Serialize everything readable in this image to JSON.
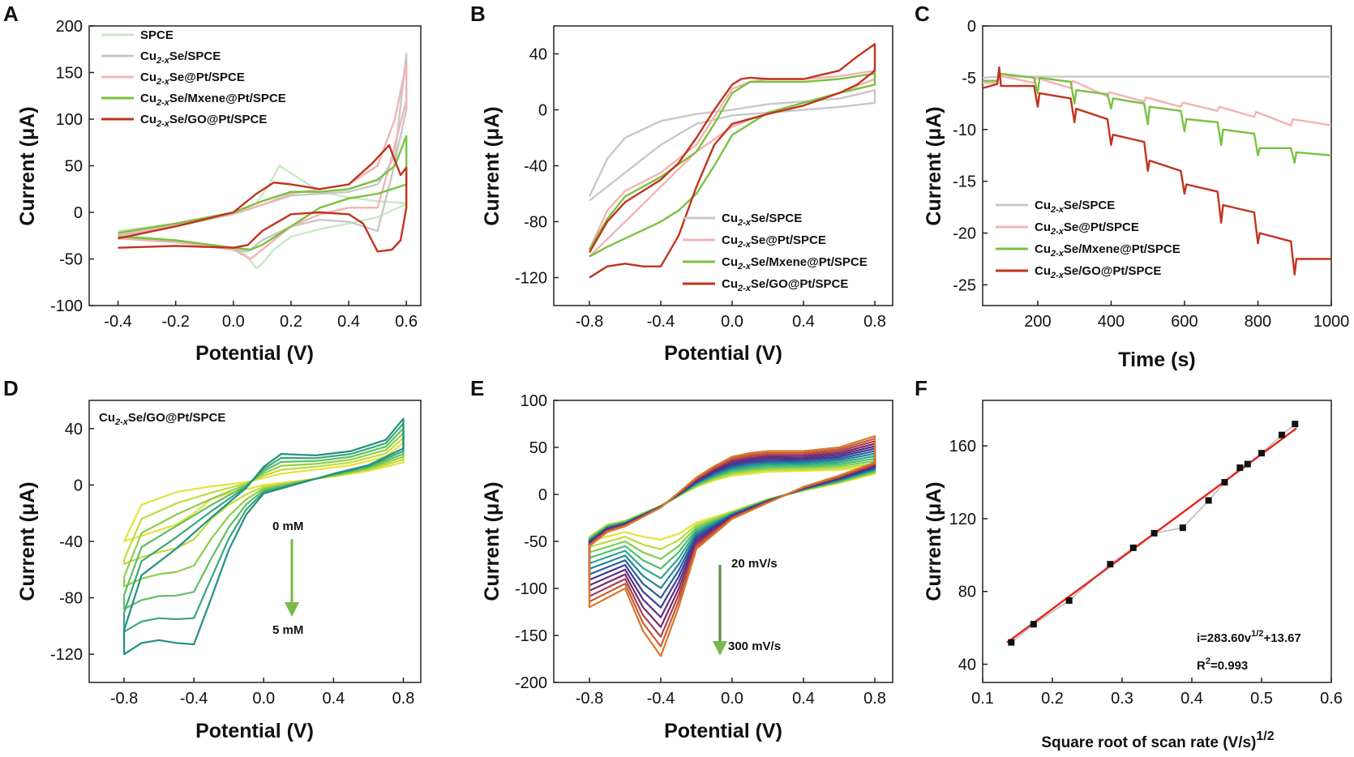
{
  "panels": [
    {
      "id": "A",
      "type": "line",
      "panel_label": "A",
      "xlabel": "Potential (V)",
      "ylabel": "Current (μA)",
      "xlim": [
        -0.5,
        0.65
      ],
      "ylim": [
        -100,
        200
      ],
      "xticks": [
        -0.4,
        -0.2,
        0.0,
        0.2,
        0.4,
        0.6
      ],
      "xtick_labels": [
        "-0.4",
        "-0.2",
        "0.0",
        "0.2",
        "0.4",
        "0.6"
      ],
      "yticks": [
        -100,
        -50,
        0,
        50,
        100,
        150,
        200
      ],
      "ytick_labels": [
        "-100",
        "-50",
        "0",
        "50",
        "100",
        "150",
        "200"
      ],
      "legend": [
        "SPCE",
        "Cu2-xSe/SPCE",
        "Cu2-xSe@Pt/SPCE",
        "Cu2-xSe/Mxene@Pt/SPCE",
        "Cu2-xSe/GO@Pt/SPCE"
      ],
      "legend_position": "top-left",
      "series": [
        {
          "name": "SPCE",
          "color": "#c9e8c4",
          "x": [
            -0.4,
            -0.2,
            0.0,
            0.08,
            0.12,
            0.16,
            0.22,
            0.3,
            0.4,
            0.5,
            0.6,
            0.6,
            0.5,
            0.4,
            0.3,
            0.2,
            0.14,
            0.1,
            0.08,
            0.04,
            0.0,
            -0.2,
            -0.4
          ],
          "y": [
            -20,
            -12,
            -2,
            10,
            28,
            50,
            38,
            22,
            16,
            12,
            10,
            9,
            -5,
            -12,
            -18,
            -26,
            -40,
            -55,
            -60,
            -45,
            -38,
            -30,
            -24
          ]
        },
        {
          "name": "Cu2-xSe/SPCE",
          "color": "#c8c8c8",
          "x": [
            -0.4,
            -0.2,
            0.0,
            0.1,
            0.2,
            0.3,
            0.4,
            0.5,
            0.56,
            0.6,
            0.6,
            0.55,
            0.5,
            0.4,
            0.3,
            0.2,
            0.1,
            0.05,
            0.0,
            -0.2,
            -0.4
          ],
          "y": [
            -25,
            -15,
            -2,
            8,
            18,
            20,
            22,
            30,
            60,
            170,
            110,
            40,
            -20,
            -10,
            -8,
            -15,
            -30,
            -42,
            -40,
            -32,
            -28
          ]
        },
        {
          "name": "Cu2-xSe@Pt/SPCE",
          "color": "#f4b3b3",
          "x": [
            -0.4,
            -0.2,
            0.0,
            0.1,
            0.2,
            0.3,
            0.4,
            0.5,
            0.56,
            0.6,
            0.6,
            0.55,
            0.5,
            0.4,
            0.3,
            0.2,
            0.12,
            0.06,
            0.0,
            -0.2,
            -0.4
          ],
          "y": [
            -24,
            -14,
            -1,
            8,
            20,
            25,
            30,
            50,
            100,
            160,
            120,
            60,
            5,
            5,
            -2,
            -15,
            -35,
            -50,
            -40,
            -32,
            -28
          ]
        },
        {
          "name": "Cu2-xSe/Mxene@Pt/SPCE",
          "color": "#7ac141",
          "x": [
            -0.4,
            -0.2,
            0.0,
            0.1,
            0.2,
            0.3,
            0.4,
            0.5,
            0.56,
            0.6,
            0.6,
            0.55,
            0.5,
            0.4,
            0.3,
            0.2,
            0.1,
            0.06,
            0.0,
            -0.2,
            -0.4
          ],
          "y": [
            -22,
            -12,
            0,
            12,
            22,
            22,
            25,
            35,
            50,
            82,
            30,
            25,
            20,
            15,
            5,
            -15,
            -35,
            -40,
            -38,
            -30,
            -26
          ]
        },
        {
          "name": "Cu2-xSe/GO@Pt/SPCE",
          "color": "#c0341d",
          "x": [
            -0.4,
            -0.2,
            0.0,
            0.08,
            0.14,
            0.2,
            0.3,
            0.4,
            0.48,
            0.54,
            0.58,
            0.6,
            0.6,
            0.58,
            0.55,
            0.5,
            0.45,
            0.4,
            0.3,
            0.2,
            0.1,
            0.05,
            0.0,
            -0.2,
            -0.4
          ],
          "y": [
            -28,
            -15,
            0,
            20,
            32,
            30,
            25,
            30,
            52,
            72,
            40,
            48,
            5,
            -30,
            -40,
            -42,
            -12,
            -2,
            0,
            -2,
            -20,
            -35,
            -38,
            -36,
            -38
          ]
        }
      ]
    },
    {
      "id": "B",
      "type": "line",
      "panel_label": "B",
      "xlabel": "Potential (V)",
      "ylabel": "Current (μA)",
      "xlim": [
        -1.0,
        0.9
      ],
      "ylim": [
        -140,
        60
      ],
      "xticks": [
        -0.8,
        -0.4,
        0.0,
        0.4,
        0.8
      ],
      "xtick_labels": [
        "-0.8",
        "-0.4",
        "0.0",
        "0.4",
        "0.8"
      ],
      "yticks": [
        -120,
        -80,
        -40,
        0,
        40
      ],
      "ytick_labels": [
        "-120",
        "-80",
        "-40",
        "0",
        "40"
      ],
      "legend": [
        "Cu2-xSe/SPCE",
        "Cu2-xSe@Pt/SPCE",
        "Cu2-xSe/Mxene@Pt/SPCE",
        "Cu2-xSe/GO@Pt/SPCE"
      ],
      "legend_position": "bottom-right",
      "series": [
        {
          "name": "Cu2-xSe/SPCE",
          "color": "#c8c8c8",
          "x": [
            -0.8,
            -0.7,
            -0.6,
            -0.4,
            -0.2,
            0.0,
            0.2,
            0.4,
            0.6,
            0.8,
            0.8,
            0.6,
            0.4,
            0.2,
            0.0,
            -0.2,
            -0.4,
            -0.6,
            -0.8
          ],
          "y": [
            -62,
            -35,
            -20,
            -8,
            -3,
            0,
            4,
            6,
            8,
            14,
            5,
            2,
            0,
            -2,
            -4,
            -10,
            -25,
            -45,
            -65
          ]
        },
        {
          "name": "Cu2-xSe@Pt/SPCE",
          "color": "#f4b3b3",
          "x": [
            -0.8,
            -0.7,
            -0.6,
            -0.4,
            -0.2,
            -0.1,
            0.0,
            0.1,
            0.2,
            0.4,
            0.6,
            0.8,
            0.8,
            0.6,
            0.4,
            0.2,
            0.0,
            -0.2,
            -0.4,
            -0.6,
            -0.8
          ],
          "y": [
            -100,
            -72,
            -58,
            -45,
            -25,
            -5,
            15,
            20,
            22,
            22,
            24,
            28,
            22,
            12,
            5,
            -2,
            -12,
            -30,
            -55,
            -80,
            -105
          ]
        },
        {
          "name": "Cu2-xSe/Mxene@Pt/SPCE",
          "color": "#7ac141",
          "x": [
            -0.8,
            -0.7,
            -0.6,
            -0.4,
            -0.2,
            -0.1,
            0.0,
            0.1,
            0.2,
            0.4,
            0.6,
            0.8,
            0.8,
            0.6,
            0.4,
            0.2,
            0.0,
            -0.1,
            -0.2,
            -0.3,
            -0.4,
            -0.5,
            -0.6,
            -0.7,
            -0.8
          ],
          "y": [
            -100,
            -78,
            -62,
            -48,
            -30,
            -10,
            12,
            20,
            20,
            20,
            22,
            26,
            18,
            12,
            5,
            -2,
            -18,
            -40,
            -60,
            -72,
            -80,
            -86,
            -92,
            -98,
            -105
          ]
        },
        {
          "name": "Cu2-xSe/GO@Pt/SPCE",
          "color": "#c0341d",
          "x": [
            -0.8,
            -0.7,
            -0.6,
            -0.5,
            -0.4,
            -0.3,
            -0.2,
            -0.1,
            0.0,
            0.05,
            0.1,
            0.2,
            0.4,
            0.6,
            0.7,
            0.8,
            0.8,
            0.7,
            0.6,
            0.4,
            0.2,
            0.0,
            -0.1,
            -0.2,
            -0.3,
            -0.4,
            -0.5,
            -0.6,
            -0.7,
            -0.8
          ],
          "y": [
            -102,
            -80,
            -66,
            -58,
            -50,
            -38,
            -20,
            0,
            18,
            22,
            23,
            22,
            22,
            28,
            38,
            47,
            28,
            18,
            12,
            3,
            -3,
            -10,
            -25,
            -55,
            -90,
            -112,
            -112,
            -110,
            -112,
            -120
          ]
        }
      ]
    },
    {
      "id": "C",
      "type": "line",
      "panel_label": "C",
      "xlabel": "Time (s)",
      "ylabel": "Current (μA)",
      "xlim": [
        50,
        1000
      ],
      "ylim": [
        -27,
        0
      ],
      "xticks": [
        200,
        400,
        600,
        800,
        1000
      ],
      "xtick_labels": [
        "200",
        "400",
        "600",
        "800",
        "1000"
      ],
      "yticks": [
        0,
        -5,
        -10,
        -15,
        -20,
        -25
      ],
      "ytick_labels": [
        "0",
        "-5",
        "-10",
        "-15",
        "-20",
        "-25"
      ],
      "legend": [
        "Cu2-xSe/SPCE",
        "Cu2-xSe@Pt/SPCE",
        "Cu2-xSe/Mxene@Pt/SPCE",
        "Cu2-xSe/GO@Pt/SPCE"
      ],
      "legend_position": "bottom-left",
      "series": [
        {
          "name": "Cu2-xSe/SPCE",
          "color": "#c8c8c8",
          "x": [
            50,
            100,
            200,
            300,
            400,
            500,
            600,
            700,
            800,
            900,
            1000
          ],
          "y": [
            -5.0,
            -4.9,
            -4.9,
            -4.9,
            -4.9,
            -4.9,
            -4.9,
            -4.9,
            -4.9,
            -4.9,
            -4.9
          ]
        },
        {
          "name": "Cu2-xSe@Pt/SPCE",
          "color": "#f4b3b3",
          "x": [
            50,
            90,
            95,
            190,
            195,
            290,
            295,
            390,
            395,
            490,
            495,
            590,
            595,
            690,
            695,
            790,
            795,
            890,
            895,
            1000
          ],
          "y": [
            -5.5,
            -5.5,
            -4.8,
            -5.5,
            -5.0,
            -6.0,
            -5.3,
            -6.8,
            -6.4,
            -7.3,
            -6.9,
            -7.8,
            -7.4,
            -8.2,
            -7.8,
            -8.8,
            -8.3,
            -9.6,
            -9.0,
            -9.6
          ]
        },
        {
          "name": "Cu2-xSe/Mxene@Pt/SPCE",
          "color": "#7ac141",
          "x": [
            50,
            90,
            95,
            190,
            200,
            205,
            290,
            300,
            305,
            390,
            400,
            405,
            490,
            500,
            505,
            590,
            600,
            605,
            690,
            700,
            705,
            790,
            800,
            805,
            890,
            900,
            905,
            1000
          ],
          "y": [
            -5.3,
            -5.3,
            -4.6,
            -5.0,
            -6.5,
            -5.0,
            -5.4,
            -7.5,
            -6.2,
            -6.6,
            -8.0,
            -7.0,
            -7.5,
            -9.5,
            -7.8,
            -8.2,
            -10.2,
            -9.0,
            -9.3,
            -11.5,
            -10.0,
            -10.4,
            -12.5,
            -11.8,
            -11.8,
            -13.2,
            -12.2,
            -12.5
          ]
        },
        {
          "name": "Cu2-xSe/GO@Pt/SPCE",
          "color": "#c0341d",
          "x": [
            50,
            90,
            95,
            100,
            190,
            200,
            205,
            290,
            300,
            305,
            390,
            400,
            405,
            490,
            500,
            505,
            590,
            600,
            605,
            690,
            700,
            705,
            790,
            800,
            805,
            890,
            900,
            905,
            1000
          ],
          "y": [
            -6.0,
            -5.6,
            -4.0,
            -5.8,
            -5.8,
            -7.8,
            -6.5,
            -7.0,
            -9.3,
            -8.0,
            -9.0,
            -11.5,
            -10.5,
            -11.2,
            -14.0,
            -13.0,
            -14.0,
            -16.2,
            -15.3,
            -16.0,
            -19.0,
            -17.3,
            -18.0,
            -21.0,
            -20.0,
            -20.8,
            -24.0,
            -22.5,
            -22.5
          ]
        }
      ]
    },
    {
      "id": "D",
      "type": "line",
      "panel_label": "D",
      "xlabel": "Potential (V)",
      "ylabel": "Current (μA)",
      "xlim": [
        -1.0,
        0.9
      ],
      "ylim": [
        -140,
        60
      ],
      "xticks": [
        -0.8,
        -0.4,
        0.0,
        0.4,
        0.8
      ],
      "xtick_labels": [
        "-0.8",
        "-0.4",
        "0.0",
        "0.4",
        "0.8"
      ],
      "yticks": [
        -120,
        -80,
        -40,
        0,
        40
      ],
      "ytick_labels": [
        "-120",
        "-80",
        "-40",
        "0",
        "40"
      ],
      "inset_title": "Cu2-xSe/GO@Pt/SPCE",
      "annotations": {
        "top": "0 mM",
        "bottom": "5 mM"
      },
      "concentration_colors": [
        "#e6e23c",
        "#c0dc3a",
        "#8fce4a",
        "#5fbf63",
        "#3aa87a",
        "#248f84"
      ]
    },
    {
      "id": "E",
      "type": "line",
      "panel_label": "E",
      "xlabel": "Potential (V)",
      "ylabel": "Current (μA)",
      "xlim": [
        -1.0,
        0.9
      ],
      "ylim": [
        -200,
        100
      ],
      "xticks": [
        -0.8,
        -0.4,
        0.0,
        0.4,
        0.8
      ],
      "xtick_labels": [
        "-0.8",
        "-0.4",
        "0.0",
        "0.4",
        "0.8"
      ],
      "yticks": [
        -200,
        -150,
        -100,
        -50,
        0,
        50,
        100
      ],
      "ytick_labels": [
        "-200",
        "-150",
        "-100",
        "-50",
        "0",
        "50",
        "100"
      ],
      "annotations": {
        "top": "20 mV/s",
        "bottom": "300 mV/s"
      },
      "scan_colors": [
        "#e6e23c",
        "#b8dc3c",
        "#7fce54",
        "#4cbf70",
        "#2ea88a",
        "#23859a",
        "#2b5f9e",
        "#3a3f94",
        "#5a2f8a",
        "#7a2c6a",
        "#a8405a",
        "#c85a30",
        "#d9762a"
      ]
    },
    {
      "id": "F",
      "type": "scatter",
      "panel_label": "F",
      "xlabel": "Square root of scan rate (V/s)",
      "xlabel_sup": "1/2",
      "ylabel": "Current (μA)",
      "xlim": [
        0.1,
        0.6
      ],
      "ylim": [
        30,
        185
      ],
      "xticks": [
        0.1,
        0.2,
        0.3,
        0.4,
        0.5,
        0.6
      ],
      "xtick_labels": [
        "0.1",
        "0.2",
        "0.3",
        "0.4",
        "0.5",
        "0.6"
      ],
      "yticks": [
        40,
        80,
        120,
        160
      ],
      "ytick_labels": [
        "40",
        "80",
        "120",
        "160"
      ],
      "x": [
        0.141,
        0.173,
        0.224,
        0.283,
        0.316,
        0.346,
        0.387,
        0.424,
        0.447,
        0.469,
        0.48,
        0.5,
        0.529,
        0.548
      ],
      "y": [
        52,
        62,
        75,
        95,
        104,
        112,
        115,
        130,
        140,
        148,
        150,
        156,
        166,
        172
      ],
      "fit": {
        "slope": 283.6,
        "intercept": 13.67
      },
      "equation_prefix": "i=283.60v",
      "equation_sup": "1/2",
      "equation_suffix": "+13.67",
      "r2_prefix": "R",
      "r2_sup": "2",
      "r2_suffix": "=0.993",
      "fit_color": "#e8241d",
      "point_color": "#111111",
      "connect_color": "#bbbbbb"
    }
  ]
}
